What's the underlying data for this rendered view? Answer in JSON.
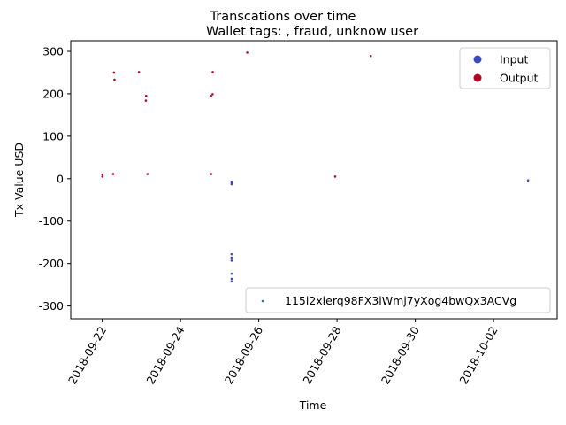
{
  "chart_data": {
    "type": "scatter",
    "title": "Transcations over time",
    "subtitle": "Wallet tags: , fraud, unknow user",
    "xlabel": "Time",
    "ylabel": "Tx Value USD",
    "xlim": [
      "2018-09-21 04:40",
      "2018-10-03 15:00"
    ],
    "ylim": [
      -330,
      325
    ],
    "x_ticks": [
      "2018-09-22",
      "2018-09-24",
      "2018-09-26",
      "2018-09-28",
      "2018-09-30",
      "2018-10-02"
    ],
    "y_ticks": [
      300,
      200,
      100,
      0,
      -100,
      -200,
      -300
    ],
    "grid": false,
    "legend_top": {
      "placement": "top-right",
      "entries": [
        {
          "label": "Input",
          "color": "#3b4cc0"
        },
        {
          "label": "Output",
          "color": "#b40426"
        }
      ]
    },
    "legend_bottom": {
      "placement": "lower-right",
      "entries": [
        {
          "label": "115i2xierq98FX3iWmj7yXog4bwQx3ACVg",
          "color": "#1f77b4"
        }
      ]
    },
    "series": [
      {
        "name": "Output",
        "color": "#b40426",
        "points": [
          {
            "x": "2018-09-22 00:05",
            "y": 5
          },
          {
            "x": "2018-09-22 00:05",
            "y": 10
          },
          {
            "x": "2018-09-22 07:10",
            "y": 250
          },
          {
            "x": "2018-09-22 07:30",
            "y": 233
          },
          {
            "x": "2018-09-22 06:40",
            "y": 11
          },
          {
            "x": "2018-09-22 22:30",
            "y": 251
          },
          {
            "x": "2018-09-23 02:55",
            "y": 195
          },
          {
            "x": "2018-09-23 02:45",
            "y": 184
          },
          {
            "x": "2018-09-23 03:45",
            "y": 11
          },
          {
            "x": "2018-09-24 18:40",
            "y": 195
          },
          {
            "x": "2018-09-24 19:40",
            "y": 199
          },
          {
            "x": "2018-09-24 19:45",
            "y": 251
          },
          {
            "x": "2018-09-24 18:50",
            "y": 11
          },
          {
            "x": "2018-09-25 16:55",
            "y": 297
          },
          {
            "x": "2018-09-27 22:50",
            "y": 5
          },
          {
            "x": "2018-09-28 20:40",
            "y": 289
          }
        ]
      },
      {
        "name": "Input",
        "color": "#3b4cc0",
        "points": [
          {
            "x": "2018-09-25 07:20",
            "y": -7
          },
          {
            "x": "2018-09-25 07:20",
            "y": -10
          },
          {
            "x": "2018-09-25 07:20",
            "y": -13
          },
          {
            "x": "2018-09-25 07:20",
            "y": -178
          },
          {
            "x": "2018-09-25 07:20",
            "y": -186
          },
          {
            "x": "2018-09-25 07:20",
            "y": -193
          },
          {
            "x": "2018-09-25 07:20",
            "y": -224
          },
          {
            "x": "2018-09-25 07:20",
            "y": -236
          },
          {
            "x": "2018-09-25 07:20",
            "y": -242
          },
          {
            "x": "2018-10-02 21:10",
            "y": -4
          }
        ]
      }
    ]
  }
}
